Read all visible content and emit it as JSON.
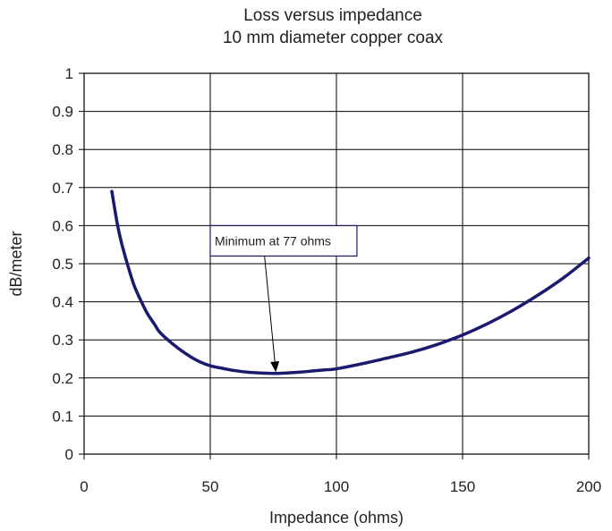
{
  "chart_data": {
    "type": "line",
    "title": "Loss versus impedance",
    "subtitle": "10 mm diameter copper coax",
    "xlabel": "Impedance (ohms)",
    "ylabel": "dB/meter",
    "xlim": [
      0,
      200
    ],
    "ylim": [
      0,
      1
    ],
    "x_ticks": [
      0,
      50,
      100,
      150,
      200
    ],
    "y_ticks": [
      0,
      0.1,
      0.2,
      0.3,
      0.4,
      0.5,
      0.6,
      0.7,
      0.8,
      0.9,
      1
    ],
    "grid": true,
    "legend": "none",
    "series": [
      {
        "color": "#1a1a6e",
        "points": [
          [
            11,
            0.69
          ],
          [
            13,
            0.61
          ],
          [
            15,
            0.55
          ],
          [
            18,
            0.48
          ],
          [
            20,
            0.44
          ],
          [
            22,
            0.41
          ],
          [
            25,
            0.37
          ],
          [
            28,
            0.34
          ],
          [
            30,
            0.32
          ],
          [
            35,
            0.29
          ],
          [
            40,
            0.265
          ],
          [
            45,
            0.245
          ],
          [
            50,
            0.232
          ],
          [
            55,
            0.225
          ],
          [
            60,
            0.219
          ],
          [
            65,
            0.215
          ],
          [
            70,
            0.213
          ],
          [
            77,
            0.212
          ],
          [
            85,
            0.215
          ],
          [
            90,
            0.218
          ],
          [
            95,
            0.221
          ],
          [
            100,
            0.224
          ],
          [
            110,
            0.237
          ],
          [
            120,
            0.252
          ],
          [
            130,
            0.268
          ],
          [
            140,
            0.288
          ],
          [
            150,
            0.313
          ],
          [
            160,
            0.343
          ],
          [
            170,
            0.378
          ],
          [
            180,
            0.418
          ],
          [
            190,
            0.463
          ],
          [
            200,
            0.515
          ]
        ]
      }
    ],
    "annotations": [
      {
        "text": "Minimum at 77 ohms",
        "points_to": [
          76,
          0.215
        ],
        "label_anchor": [
          50,
          0.6
        ]
      }
    ]
  }
}
